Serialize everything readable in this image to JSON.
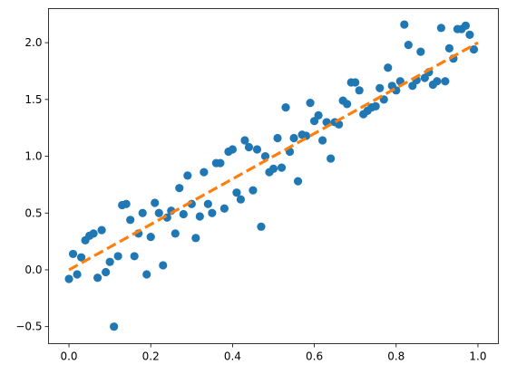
{
  "chart_data": {
    "type": "scatter",
    "title": "",
    "xlabel": "",
    "ylabel": "",
    "xlim": [
      -0.05,
      1.05
    ],
    "ylim": [
      -0.65,
      2.3
    ],
    "grid": false,
    "legend": "none",
    "x_ticks": [
      {
        "value": 0.0,
        "label": "0.0"
      },
      {
        "value": 0.2,
        "label": "0.2"
      },
      {
        "value": 0.4,
        "label": "0.4"
      },
      {
        "value": 0.6,
        "label": "0.6"
      },
      {
        "value": 0.8,
        "label": "0.8"
      },
      {
        "value": 1.0,
        "label": "1.0"
      }
    ],
    "y_ticks": [
      {
        "value": -0.5,
        "label": "−0.5"
      },
      {
        "value": 0.0,
        "label": "0.0"
      },
      {
        "value": 0.5,
        "label": "0.5"
      },
      {
        "value": 1.0,
        "label": "1.0"
      },
      {
        "value": 1.5,
        "label": "1.5"
      },
      {
        "value": 2.0,
        "label": "2.0"
      }
    ],
    "series": [
      {
        "kind": "scatter",
        "color": "#1f77b4",
        "points": [
          [
            0.0,
            -0.08
          ],
          [
            0.01,
            0.14
          ],
          [
            0.02,
            -0.04
          ],
          [
            0.03,
            0.11
          ],
          [
            0.04,
            0.26
          ],
          [
            0.05,
            0.3
          ],
          [
            0.06,
            0.32
          ],
          [
            0.07,
            -0.07
          ],
          [
            0.08,
            0.35
          ],
          [
            0.09,
            -0.02
          ],
          [
            0.1,
            0.07
          ],
          [
            0.11,
            -0.5
          ],
          [
            0.12,
            0.12
          ],
          [
            0.13,
            0.57
          ],
          [
            0.14,
            0.58
          ],
          [
            0.15,
            0.44
          ],
          [
            0.16,
            0.12
          ],
          [
            0.17,
            0.32
          ],
          [
            0.18,
            0.5
          ],
          [
            0.19,
            -0.04
          ],
          [
            0.2,
            0.29
          ],
          [
            0.21,
            0.59
          ],
          [
            0.22,
            0.5
          ],
          [
            0.23,
            0.04
          ],
          [
            0.24,
            0.46
          ],
          [
            0.25,
            0.52
          ],
          [
            0.26,
            0.32
          ],
          [
            0.27,
            0.72
          ],
          [
            0.28,
            0.49
          ],
          [
            0.29,
            0.83
          ],
          [
            0.3,
            0.58
          ],
          [
            0.31,
            0.28
          ],
          [
            0.32,
            0.47
          ],
          [
            0.33,
            0.86
          ],
          [
            0.34,
            0.58
          ],
          [
            0.35,
            0.5
          ],
          [
            0.36,
            0.94
          ],
          [
            0.37,
            0.94
          ],
          [
            0.38,
            0.54
          ],
          [
            0.39,
            1.04
          ],
          [
            0.4,
            1.06
          ],
          [
            0.41,
            0.68
          ],
          [
            0.42,
            0.62
          ],
          [
            0.43,
            1.14
          ],
          [
            0.44,
            1.08
          ],
          [
            0.45,
            0.7
          ],
          [
            0.46,
            1.06
          ],
          [
            0.47,
            0.38
          ],
          [
            0.48,
            1.0
          ],
          [
            0.49,
            0.86
          ],
          [
            0.5,
            0.89
          ],
          [
            0.51,
            1.16
          ],
          [
            0.52,
            0.9
          ],
          [
            0.53,
            1.43
          ],
          [
            0.54,
            1.04
          ],
          [
            0.55,
            1.16
          ],
          [
            0.56,
            0.78
          ],
          [
            0.57,
            1.19
          ],
          [
            0.58,
            1.18
          ],
          [
            0.59,
            1.47
          ],
          [
            0.6,
            1.31
          ],
          [
            0.61,
            1.36
          ],
          [
            0.62,
            1.14
          ],
          [
            0.63,
            1.3
          ],
          [
            0.64,
            0.98
          ],
          [
            0.65,
            1.3
          ],
          [
            0.66,
            1.28
          ],
          [
            0.67,
            1.49
          ],
          [
            0.68,
            1.46
          ],
          [
            0.69,
            1.65
          ],
          [
            0.7,
            1.65
          ],
          [
            0.71,
            1.58
          ],
          [
            0.72,
            1.37
          ],
          [
            0.73,
            1.4
          ],
          [
            0.74,
            1.43
          ],
          [
            0.75,
            1.44
          ],
          [
            0.76,
            1.6
          ],
          [
            0.77,
            1.5
          ],
          [
            0.78,
            1.78
          ],
          [
            0.79,
            1.62
          ],
          [
            0.8,
            1.58
          ],
          [
            0.81,
            1.66
          ],
          [
            0.82,
            2.16
          ],
          [
            0.83,
            1.98
          ],
          [
            0.84,
            1.62
          ],
          [
            0.85,
            1.67
          ],
          [
            0.86,
            1.92
          ],
          [
            0.87,
            1.69
          ],
          [
            0.88,
            1.74
          ],
          [
            0.89,
            1.63
          ],
          [
            0.9,
            1.66
          ],
          [
            0.91,
            2.13
          ],
          [
            0.92,
            1.66
          ],
          [
            0.93,
            1.95
          ],
          [
            0.94,
            1.86
          ],
          [
            0.95,
            2.12
          ],
          [
            0.96,
            2.12
          ],
          [
            0.97,
            2.15
          ],
          [
            0.98,
            2.07
          ],
          [
            0.99,
            1.94
          ]
        ]
      },
      {
        "kind": "line",
        "style": "dashed",
        "color": "#ff7f0e",
        "points": [
          [
            0.0,
            0.0
          ],
          [
            1.0,
            2.0
          ]
        ]
      }
    ]
  }
}
